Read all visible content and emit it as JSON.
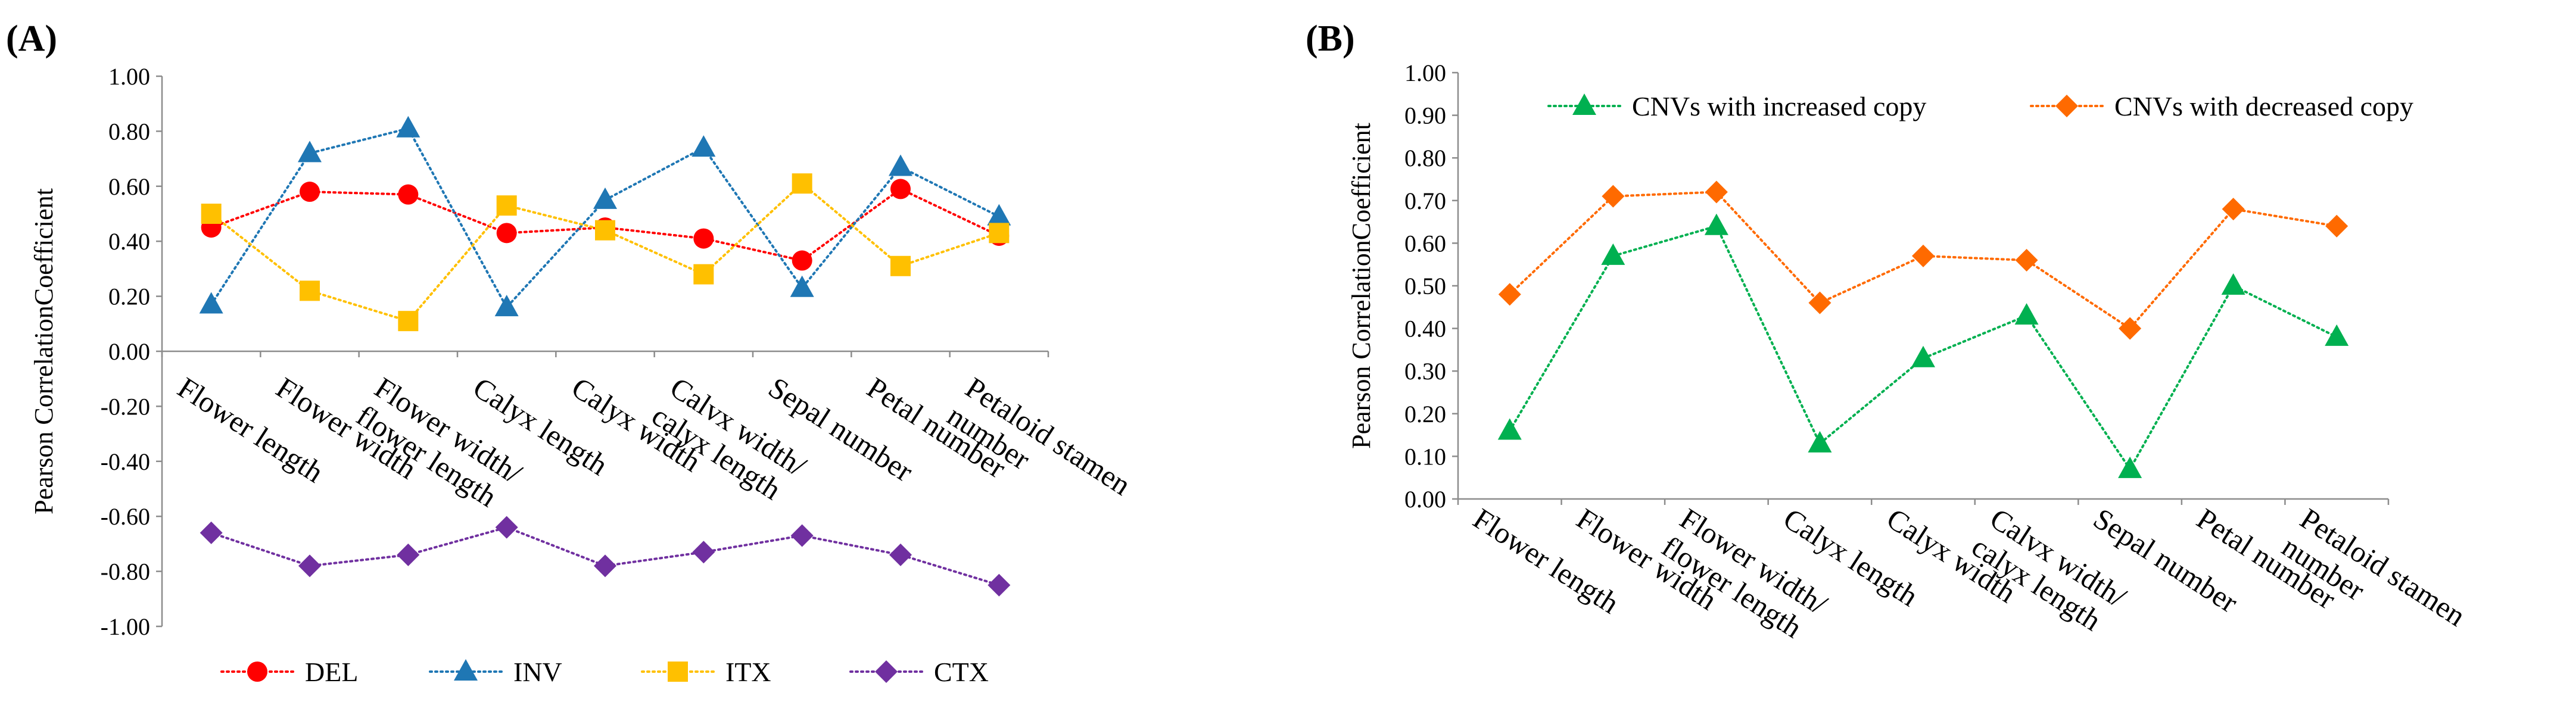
{
  "chart_data": [
    {
      "panel": "(A)",
      "type": "line",
      "ylabel": "Pearson CorrelationCoefficient",
      "ylim": [
        -1.0,
        1.0
      ],
      "yticks": [
        "1.00",
        "0.80",
        "0.60",
        "0.40",
        "0.20",
        "0.00",
        "-0.20",
        "-0.40",
        "-0.60",
        "-0.80",
        "-1.00"
      ],
      "categories": [
        [
          "Flower length"
        ],
        [
          "Flower width"
        ],
        [
          "Flower width/",
          "flower length"
        ],
        [
          "Calyx length"
        ],
        [
          "Calyx width"
        ],
        [
          "Calvx width/",
          "calyx length"
        ],
        [
          "Sepal number"
        ],
        [
          "Petal number"
        ],
        [
          "Petaloid stamen",
          "number"
        ]
      ],
      "legend_position": "bottom",
      "series": [
        {
          "name": "DEL",
          "marker": "circle",
          "color": "#ff0000",
          "values": [
            0.45,
            0.58,
            0.57,
            0.43,
            0.45,
            0.41,
            0.33,
            0.59,
            0.42
          ]
        },
        {
          "name": "INV",
          "marker": "triangle",
          "color": "#1f77b4",
          "values": [
            0.17,
            0.72,
            0.81,
            0.16,
            0.55,
            0.74,
            0.23,
            0.67,
            0.49
          ]
        },
        {
          "name": "ITX",
          "marker": "square",
          "color": "#ffc000",
          "values": [
            0.5,
            0.22,
            0.11,
            0.53,
            0.44,
            0.28,
            0.61,
            0.31,
            0.43
          ]
        },
        {
          "name": "CTX",
          "marker": "diamond",
          "color": "#7030a0",
          "values": [
            -0.66,
            -0.78,
            -0.74,
            -0.64,
            -0.78,
            -0.73,
            -0.67,
            -0.74,
            -0.85
          ]
        }
      ]
    },
    {
      "panel": "(B)",
      "type": "line",
      "ylabel": "Pearson CorrelationCoefficient",
      "ylim": [
        0.0,
        1.0
      ],
      "yticks": [
        "1.00",
        "0.90",
        "0.80",
        "0.70",
        "0.60",
        "0.50",
        "0.40",
        "0.30",
        "0.20",
        "0.10",
        "0.00"
      ],
      "categories": [
        [
          "Flower length"
        ],
        [
          "Flower width"
        ],
        [
          "Flower width/",
          "flower length"
        ],
        [
          "Calyx length"
        ],
        [
          "Calyx width"
        ],
        [
          "Calvx width/",
          "calyx length"
        ],
        [
          "Sepal number"
        ],
        [
          "Petal number"
        ],
        [
          "Petaloid stamen",
          "number"
        ]
      ],
      "legend_position": "top",
      "series": [
        {
          "name": "CNVs with increased copy",
          "marker": "triangle",
          "color": "#00b050",
          "values": [
            0.16,
            0.57,
            0.64,
            0.13,
            0.33,
            0.43,
            0.07,
            0.5,
            0.38
          ]
        },
        {
          "name": "CNVs with decreased copy",
          "marker": "diamond",
          "color": "#ff6a00",
          "values": [
            0.48,
            0.71,
            0.72,
            0.46,
            0.57,
            0.56,
            0.4,
            0.68,
            0.64
          ]
        }
      ]
    }
  ]
}
